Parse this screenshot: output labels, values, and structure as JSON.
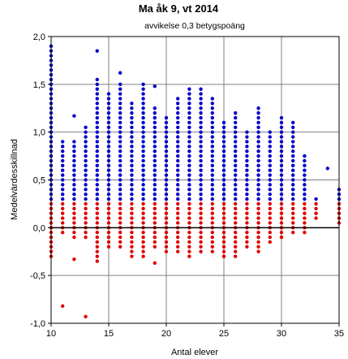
{
  "chart_data": {
    "type": "scatter",
    "title": "Ma åk 9, vt 2014",
    "subtitle": "avvikelse 0,3 betygspoäng",
    "xlabel": "Antal elever",
    "ylabel": "Medelvärdesskillnad",
    "xlim": [
      10,
      35
    ],
    "ylim": [
      -1.0,
      2.0
    ],
    "xticks": [
      10,
      15,
      20,
      25,
      30,
      35
    ],
    "yticks": [
      -1.0,
      -0.5,
      0.0,
      0.5,
      1.0,
      1.5,
      2.0
    ],
    "xtick_labels": [
      "10",
      "15",
      "20",
      "25",
      "30",
      "35"
    ],
    "ytick_labels": [
      "-1,0",
      "-0,5",
      "0,0",
      "0,5",
      "1,0",
      "1,5",
      "2,0"
    ],
    "grid": true,
    "legend": "none",
    "threshold": 0.3,
    "colors": {
      "above_threshold": "#0000cc",
      "below_threshold": "#e00000",
      "zero_line": "#000000",
      "grid": "#808080"
    },
    "points_per_x": [
      {
        "x": 10,
        "ymin": -0.3,
        "ymax": 1.9,
        "extra": []
      },
      {
        "x": 11,
        "ymin": -0.05,
        "ymax": 0.9,
        "extra": [
          -0.82
        ]
      },
      {
        "x": 12,
        "ymin": -0.1,
        "ymax": 0.9,
        "extra": [
          -0.33,
          1.17
        ]
      },
      {
        "x": 13,
        "ymin": -0.1,
        "ymax": 1.07,
        "extra": [
          -0.93
        ]
      },
      {
        "x": 14,
        "ymin": -0.35,
        "ymax": 1.55,
        "extra": [
          1.85
        ]
      },
      {
        "x": 15,
        "ymin": -0.2,
        "ymax": 1.4,
        "extra": []
      },
      {
        "x": 16,
        "ymin": -0.2,
        "ymax": 1.5,
        "extra": [
          1.62
        ]
      },
      {
        "x": 17,
        "ymin": -0.3,
        "ymax": 1.3,
        "extra": []
      },
      {
        "x": 18,
        "ymin": -0.3,
        "ymax": 1.5,
        "extra": []
      },
      {
        "x": 19,
        "ymin": -0.2,
        "ymax": 1.25,
        "extra": [
          -0.37,
          1.48
        ]
      },
      {
        "x": 20,
        "ymin": -0.25,
        "ymax": 1.15,
        "extra": []
      },
      {
        "x": 21,
        "ymin": -0.25,
        "ymax": 1.35,
        "extra": []
      },
      {
        "x": 22,
        "ymin": -0.3,
        "ymax": 1.45,
        "extra": []
      },
      {
        "x": 23,
        "ymin": -0.25,
        "ymax": 1.47,
        "extra": []
      },
      {
        "x": 24,
        "ymin": -0.25,
        "ymax": 1.35,
        "extra": []
      },
      {
        "x": 25,
        "ymin": -0.3,
        "ymax": 1.1,
        "extra": []
      },
      {
        "x": 26,
        "ymin": -0.3,
        "ymax": 1.2,
        "extra": []
      },
      {
        "x": 27,
        "ymin": -0.2,
        "ymax": 1.0,
        "extra": []
      },
      {
        "x": 28,
        "ymin": -0.25,
        "ymax": 1.28,
        "extra": []
      },
      {
        "x": 29,
        "ymin": -0.15,
        "ymax": 1.0,
        "extra": []
      },
      {
        "x": 30,
        "ymin": -0.1,
        "ymax": 1.17,
        "extra": []
      },
      {
        "x": 31,
        "ymin": -0.05,
        "ymax": 1.1,
        "extra": []
      },
      {
        "x": 32,
        "ymin": -0.05,
        "ymax": 0.75,
        "extra": []
      },
      {
        "x": 33,
        "ymin": 0.1,
        "ymax": 0.3,
        "extra": []
      },
      {
        "x": 34,
        "ymin": 0.62,
        "ymax": 0.62,
        "extra": []
      },
      {
        "x": 35,
        "ymin": 0.05,
        "ymax": 0.42,
        "extra": []
      }
    ]
  }
}
